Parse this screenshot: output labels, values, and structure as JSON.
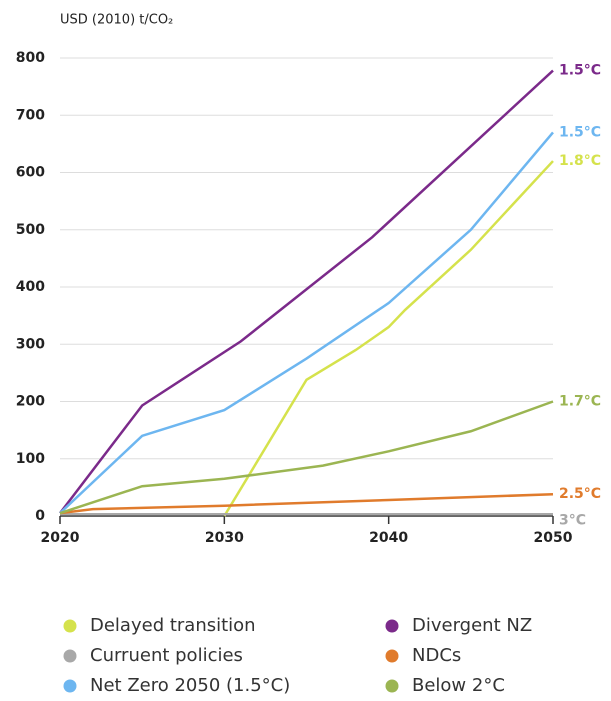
{
  "chart_data": {
    "type": "line",
    "y_label": "USD (2010) t/CO₂",
    "xlim": [
      2020,
      2050
    ],
    "xticks": [
      2020,
      2030,
      2040,
      2050
    ],
    "ylim": [
      0,
      800
    ],
    "yticks": [
      0,
      100,
      200,
      300,
      400,
      500,
      600,
      700,
      800
    ],
    "grid": true,
    "series": [
      {
        "name": "Delayed transition",
        "color": "#d5e24c",
        "end_label": "1.8°C",
        "x": [
          2030,
          2035,
          2038,
          2040,
          2041,
          2045,
          2050
        ],
        "values": [
          0,
          238,
          290,
          330,
          360,
          465,
          620
        ]
      },
      {
        "name": "Divergent NZ",
        "color": "#7b2a8a",
        "end_label": "1.5°C",
        "x": [
          2020,
          2025,
          2031,
          2039,
          2050
        ],
        "values": [
          5,
          193,
          305,
          487,
          778
        ]
      },
      {
        "name": "Curruent policies",
        "color": "#a8a8a8",
        "end_label": "3°C",
        "x": [
          2020,
          2050
        ],
        "values": [
          3,
          3
        ]
      },
      {
        "name": "NDCs",
        "color": "#e07b2c",
        "end_label": "2.5°C",
        "x": [
          2020,
          2022,
          2030,
          2040,
          2050
        ],
        "values": [
          5,
          12,
          18,
          28,
          38
        ]
      },
      {
        "name": "Net Zero 2050 (1.5°C)",
        "color": "#6db6f0",
        "end_label": "1.5°C",
        "x": [
          2020,
          2025,
          2030,
          2035,
          2040,
          2045,
          2050
        ],
        "values": [
          5,
          140,
          185,
          275,
          372,
          500,
          670
        ]
      },
      {
        "name": "Below 2°C",
        "color": "#9bb552",
        "end_label": "1.7°C",
        "x": [
          2020,
          2025,
          2030,
          2036,
          2040,
          2045,
          2050
        ],
        "values": [
          5,
          52,
          65,
          88,
          113,
          148,
          200
        ]
      }
    ]
  }
}
